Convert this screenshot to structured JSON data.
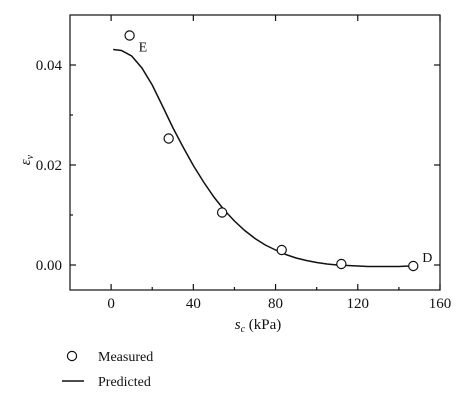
{
  "chart_data": {
    "type": "scatter",
    "xlabel_main": "s",
    "xlabel_sub": "c",
    "xlabel_unit": " (kPa)",
    "ylabel_main": "ε",
    "ylabel_sub": "v",
    "xlim": [
      -20,
      160
    ],
    "ylim": [
      -0.005,
      0.05
    ],
    "xticks": [
      0,
      40,
      80,
      120,
      160
    ],
    "yticks": [
      0.0,
      0.02,
      0.04
    ],
    "ytick_labels": [
      "0.00",
      "0.02",
      "0.04"
    ],
    "series": [
      {
        "name": "Measured",
        "kind": "markers",
        "x": [
          9,
          28,
          54,
          83,
          112,
          147
        ],
        "y": [
          0.0459,
          0.0253,
          0.0105,
          0.003,
          0.0002,
          -0.0002
        ]
      },
      {
        "name": "Predicted",
        "kind": "line",
        "x": [
          1,
          5,
          10,
          15,
          20,
          25,
          30,
          35,
          40,
          45,
          50,
          55,
          60,
          65,
          70,
          75,
          80,
          85,
          90,
          95,
          100,
          105,
          110,
          115,
          120,
          125,
          130,
          135,
          140,
          145,
          148
        ],
        "y": [
          0.0431,
          0.0429,
          0.0418,
          0.0394,
          0.036,
          0.0318,
          0.0275,
          0.0236,
          0.0199,
          0.0166,
          0.0136,
          0.011,
          0.0088,
          0.0069,
          0.0053,
          0.004,
          0.003,
          0.0021,
          0.0014,
          0.0009,
          0.0005,
          0.0002,
          0.0,
          -0.0001,
          -0.0002,
          -0.0003,
          -0.0003,
          -0.0003,
          -0.0003,
          -0.0002,
          -0.0001
        ]
      }
    ],
    "annotations": [
      {
        "text": "E",
        "x": 9,
        "y": 0.0459
      },
      {
        "text": "D",
        "x": 147,
        "y": -0.0002
      }
    ],
    "legend": {
      "placement": "bottom-left",
      "items": [
        "Measured",
        "Predicted"
      ]
    },
    "grid": false
  }
}
